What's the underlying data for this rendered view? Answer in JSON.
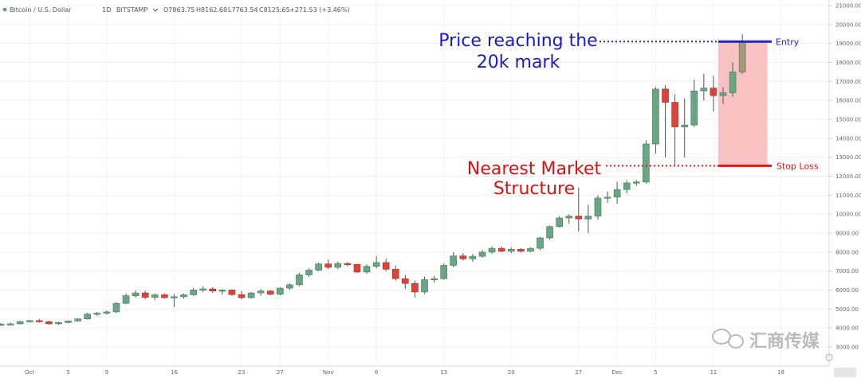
{
  "header": {
    "symbol": "Bitcoin / U.S. Dollar",
    "interval": "1D",
    "exchange": "BITSTAMP",
    "open": "O7863.75",
    "high": "H8162.68",
    "low": "L7763.54",
    "close": "C8125.65",
    "change": "+271.53 (+3.46%)"
  },
  "annotations": {
    "price_target_line1": "Price reaching the",
    "price_target_line2": "20k mark",
    "structure_line1": "Nearest Market",
    "structure_line2": "Structure",
    "entry_label": "Entry",
    "stop_loss_label": "Stop Loss"
  },
  "watermark": "汇商传媒",
  "colors": {
    "up": "#6aa584",
    "down": "#d9453b",
    "entry": "#2222cc",
    "stop": "#ee1111",
    "zone": "#f9c2c2"
  },
  "chart_data": {
    "type": "candlestick",
    "title": "",
    "ylim": [
      2000,
      21400
    ],
    "yticks": [
      3000,
      4000,
      5000,
      6000,
      7000,
      8000,
      9000,
      10000,
      11000,
      12000,
      13000,
      14000,
      15000,
      16000,
      17000,
      18000,
      19000,
      20000,
      21000
    ],
    "ytick_labels": [
      "3000.00",
      "4000.00",
      "5000.00",
      "6000.00",
      "7000.00",
      "8000.00",
      "9000.00",
      "10000.00",
      "11000.00",
      "12000.00",
      "13000.00",
      "14000.00",
      "15000.00",
      "16000.00",
      "17000.00",
      "18000.00",
      "19000.00",
      "20000.00",
      "21000.00"
    ],
    "xticks": [
      {
        "label": "Oct",
        "index": 3
      },
      {
        "label": "5",
        "index": 7
      },
      {
        "label": "9",
        "index": 11
      },
      {
        "label": "16",
        "index": 18
      },
      {
        "label": "23",
        "index": 25
      },
      {
        "label": "27",
        "index": 29
      },
      {
        "label": "Nov",
        "index": 34
      },
      {
        "label": "6",
        "index": 39
      },
      {
        "label": "13",
        "index": 46
      },
      {
        "label": "20",
        "index": 53
      },
      {
        "label": "27",
        "index": 60
      },
      {
        "label": "Dec",
        "index": 64
      },
      {
        "label": "5",
        "index": 68
      },
      {
        "label": "11",
        "index": 74
      },
      {
        "label": "18",
        "index": 81
      }
    ],
    "candles": [
      {
        "o": 4180,
        "h": 4260,
        "l": 4120,
        "c": 4200
      },
      {
        "o": 4200,
        "h": 4280,
        "l": 4150,
        "c": 4220
      },
      {
        "o": 4220,
        "h": 4380,
        "l": 4180,
        "c": 4340
      },
      {
        "o": 4340,
        "h": 4420,
        "l": 4290,
        "c": 4390
      },
      {
        "o": 4390,
        "h": 4470,
        "l": 4300,
        "c": 4330
      },
      {
        "o": 4330,
        "h": 4380,
        "l": 4180,
        "c": 4220
      },
      {
        "o": 4220,
        "h": 4330,
        "l": 4160,
        "c": 4290
      },
      {
        "o": 4290,
        "h": 4400,
        "l": 4250,
        "c": 4370
      },
      {
        "o": 4370,
        "h": 4520,
        "l": 4330,
        "c": 4480
      },
      {
        "o": 4480,
        "h": 4800,
        "l": 4440,
        "c": 4730
      },
      {
        "o": 4730,
        "h": 4850,
        "l": 4640,
        "c": 4780
      },
      {
        "o": 4780,
        "h": 4920,
        "l": 4700,
        "c": 4850
      },
      {
        "o": 4850,
        "h": 5350,
        "l": 4780,
        "c": 5300
      },
      {
        "o": 5300,
        "h": 5820,
        "l": 5250,
        "c": 5700
      },
      {
        "o": 5700,
        "h": 5980,
        "l": 5600,
        "c": 5850
      },
      {
        "o": 5850,
        "h": 5970,
        "l": 5500,
        "c": 5620
      },
      {
        "o": 5620,
        "h": 5820,
        "l": 5480,
        "c": 5750
      },
      {
        "o": 5750,
        "h": 5830,
        "l": 5550,
        "c": 5600
      },
      {
        "o": 5600,
        "h": 5780,
        "l": 5100,
        "c": 5650
      },
      {
        "o": 5650,
        "h": 5820,
        "l": 5550,
        "c": 5750
      },
      {
        "o": 5750,
        "h": 6100,
        "l": 5700,
        "c": 6000
      },
      {
        "o": 6000,
        "h": 6200,
        "l": 5900,
        "c": 6060
      },
      {
        "o": 6060,
        "h": 6150,
        "l": 5850,
        "c": 5950
      },
      {
        "o": 5950,
        "h": 6050,
        "l": 5760,
        "c": 6000
      },
      {
        "o": 6000,
        "h": 6050,
        "l": 5700,
        "c": 5760
      },
      {
        "o": 5760,
        "h": 5960,
        "l": 5500,
        "c": 5600
      },
      {
        "o": 5600,
        "h": 5900,
        "l": 5550,
        "c": 5850
      },
      {
        "o": 5850,
        "h": 6050,
        "l": 5700,
        "c": 5950
      },
      {
        "o": 5950,
        "h": 6000,
        "l": 5720,
        "c": 5780
      },
      {
        "o": 5780,
        "h": 6150,
        "l": 5720,
        "c": 6100
      },
      {
        "o": 6100,
        "h": 6350,
        "l": 6000,
        "c": 6280
      },
      {
        "o": 6280,
        "h": 6900,
        "l": 6200,
        "c": 6800
      },
      {
        "o": 6800,
        "h": 7150,
        "l": 6700,
        "c": 7050
      },
      {
        "o": 7050,
        "h": 7450,
        "l": 7000,
        "c": 7380
      },
      {
        "o": 7380,
        "h": 7600,
        "l": 7100,
        "c": 7200
      },
      {
        "o": 7200,
        "h": 7500,
        "l": 7100,
        "c": 7400
      },
      {
        "o": 7400,
        "h": 7480,
        "l": 7250,
        "c": 7350
      },
      {
        "o": 7350,
        "h": 7400,
        "l": 6900,
        "c": 6950
      },
      {
        "o": 6950,
        "h": 7350,
        "l": 6850,
        "c": 7250
      },
      {
        "o": 7250,
        "h": 7800,
        "l": 7150,
        "c": 7450
      },
      {
        "o": 7450,
        "h": 7650,
        "l": 7000,
        "c": 7100
      },
      {
        "o": 7100,
        "h": 7300,
        "l": 6500,
        "c": 6600
      },
      {
        "o": 6600,
        "h": 6800,
        "l": 6050,
        "c": 6350
      },
      {
        "o": 6350,
        "h": 6500,
        "l": 5600,
        "c": 5900
      },
      {
        "o": 5900,
        "h": 6700,
        "l": 5800,
        "c": 6550
      },
      {
        "o": 6550,
        "h": 6750,
        "l": 6400,
        "c": 6600
      },
      {
        "o": 6600,
        "h": 7400,
        "l": 6550,
        "c": 7300
      },
      {
        "o": 7300,
        "h": 8000,
        "l": 7200,
        "c": 7800
      },
      {
        "o": 7800,
        "h": 7950,
        "l": 7550,
        "c": 7650
      },
      {
        "o": 7650,
        "h": 7900,
        "l": 7500,
        "c": 7780
      },
      {
        "o": 7780,
        "h": 8100,
        "l": 7700,
        "c": 8000
      },
      {
        "o": 8000,
        "h": 8300,
        "l": 7900,
        "c": 8200
      },
      {
        "o": 8200,
        "h": 8300,
        "l": 8000,
        "c": 8050
      },
      {
        "o": 8050,
        "h": 8250,
        "l": 7950,
        "c": 8150
      },
      {
        "o": 8150,
        "h": 8200,
        "l": 7980,
        "c": 8050
      },
      {
        "o": 8050,
        "h": 8250,
        "l": 8000,
        "c": 8200
      },
      {
        "o": 8200,
        "h": 8800,
        "l": 8100,
        "c": 8750
      },
      {
        "o": 8750,
        "h": 9400,
        "l": 8650,
        "c": 9350
      },
      {
        "o": 9350,
        "h": 9900,
        "l": 9300,
        "c": 9800
      },
      {
        "o": 9800,
        "h": 10000,
        "l": 9500,
        "c": 9900
      },
      {
        "o": 9900,
        "h": 11400,
        "l": 9100,
        "c": 9750
      },
      {
        "o": 9750,
        "h": 10500,
        "l": 9000,
        "c": 9900
      },
      {
        "o": 9900,
        "h": 11000,
        "l": 9700,
        "c": 10850
      },
      {
        "o": 10850,
        "h": 11200,
        "l": 10600,
        "c": 10900
      },
      {
        "o": 10900,
        "h": 11700,
        "l": 10550,
        "c": 11300
      },
      {
        "o": 11300,
        "h": 11800,
        "l": 11100,
        "c": 11650
      },
      {
        "o": 11650,
        "h": 11800,
        "l": 11500,
        "c": 11700
      },
      {
        "o": 11700,
        "h": 13900,
        "l": 11600,
        "c": 13700
      },
      {
        "o": 13700,
        "h": 16700,
        "l": 13200,
        "c": 16600
      },
      {
        "o": 16600,
        "h": 16800,
        "l": 13000,
        "c": 15900
      },
      {
        "o": 15900,
        "h": 16300,
        "l": 12600,
        "c": 14600
      },
      {
        "o": 14600,
        "h": 16100,
        "l": 13000,
        "c": 14700
      },
      {
        "o": 14700,
        "h": 17100,
        "l": 14600,
        "c": 16500
      },
      {
        "o": 16500,
        "h": 17400,
        "l": 16000,
        "c": 16650
      },
      {
        "o": 16650,
        "h": 17300,
        "l": 15400,
        "c": 16250
      },
      {
        "o": 16250,
        "h": 16700,
        "l": 15800,
        "c": 16400
      },
      {
        "o": 16400,
        "h": 18000,
        "l": 16200,
        "c": 17500
      },
      {
        "o": 17500,
        "h": 19500,
        "l": 17400,
        "c": 19100
      }
    ],
    "entry_level": 19100,
    "stop_loss_level": 12550
  }
}
